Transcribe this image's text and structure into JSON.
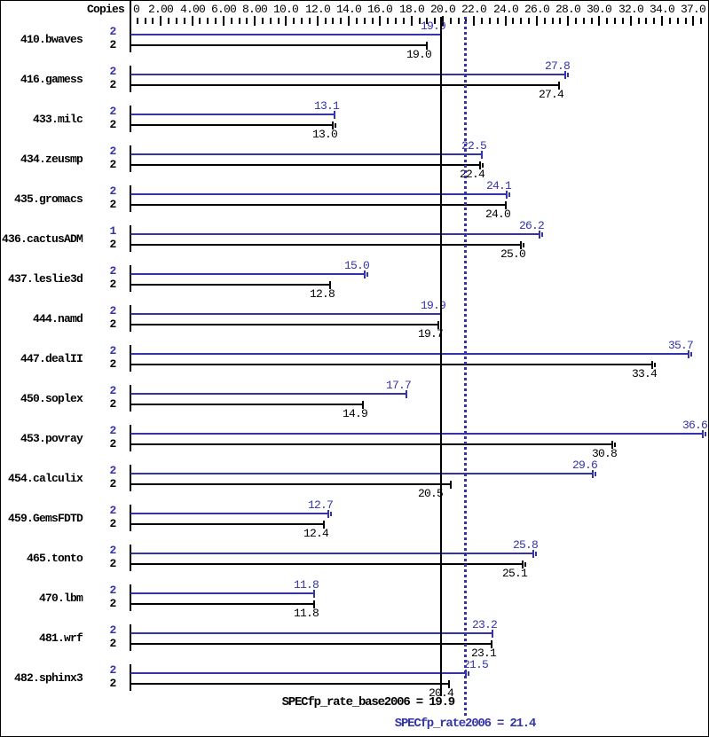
{
  "header": {
    "copies_label": "Copies"
  },
  "chart_data": {
    "type": "bar",
    "orientation": "horizontal",
    "title": "",
    "xlabel": "",
    "ylabel": "",
    "x_axis": {
      "min": 0,
      "max": 37,
      "minor_step": 0.5,
      "major_step": 2,
      "labels": [
        {
          "v": 0,
          "t": "0"
        },
        {
          "v": 2,
          "t": "2.00"
        },
        {
          "v": 4,
          "t": "4.00"
        },
        {
          "v": 6,
          "t": "6.00"
        },
        {
          "v": 8,
          "t": "8.00"
        },
        {
          "v": 10,
          "t": "10.0"
        },
        {
          "v": 12,
          "t": "12.0"
        },
        {
          "v": 14,
          "t": "14.0"
        },
        {
          "v": 16,
          "t": "16.0"
        },
        {
          "v": 18,
          "t": "18.0"
        },
        {
          "v": 20,
          "t": "20.0"
        },
        {
          "v": 22,
          "t": "22.0"
        },
        {
          "v": 24,
          "t": "24.0"
        },
        {
          "v": 26,
          "t": "26.0"
        },
        {
          "v": 28,
          "t": "28.0"
        },
        {
          "v": 30,
          "t": "30.0"
        },
        {
          "v": 32,
          "t": "32.0"
        },
        {
          "v": 34,
          "t": "34.0"
        },
        {
          "v": 37,
          "t": "37.0"
        }
      ]
    },
    "series": [
      {
        "name": "peak",
        "color": "#3333aa"
      },
      {
        "name": "base",
        "color": "#000000"
      }
    ],
    "benchmarks": [
      {
        "name": "410.bwaves",
        "peak": {
          "copies": "2",
          "value": 19.9,
          "label": "19.9",
          "err": false
        },
        "base": {
          "copies": "2",
          "value": 19.0,
          "label": "19.0",
          "err": false
        }
      },
      {
        "name": "416.gamess",
        "peak": {
          "copies": "2",
          "value": 27.8,
          "label": "27.8",
          "err": true
        },
        "base": {
          "copies": "2",
          "value": 27.4,
          "label": "27.4",
          "err": false
        }
      },
      {
        "name": "433.milc",
        "peak": {
          "copies": "2",
          "value": 13.1,
          "label": "13.1",
          "err": false
        },
        "base": {
          "copies": "2",
          "value": 13.0,
          "label": "13.0",
          "err": true
        }
      },
      {
        "name": "434.zeusmp",
        "peak": {
          "copies": "2",
          "value": 22.5,
          "label": "22.5",
          "err": false
        },
        "base": {
          "copies": "2",
          "value": 22.4,
          "label": "22.4",
          "err": true
        }
      },
      {
        "name": "435.gromacs",
        "peak": {
          "copies": "2",
          "value": 24.1,
          "label": "24.1",
          "err": true
        },
        "base": {
          "copies": "2",
          "value": 24.0,
          "label": "24.0",
          "err": false
        }
      },
      {
        "name": "436.cactusADM",
        "peak": {
          "copies": "1",
          "value": 26.2,
          "label": "26.2",
          "err": true
        },
        "base": {
          "copies": "2",
          "value": 25.0,
          "label": "25.0",
          "err": true
        }
      },
      {
        "name": "437.leslie3d",
        "peak": {
          "copies": "2",
          "value": 15.0,
          "label": "15.0",
          "err": true
        },
        "base": {
          "copies": "2",
          "value": 12.8,
          "label": "12.8",
          "err": false
        }
      },
      {
        "name": "444.namd",
        "peak": {
          "copies": "2",
          "value": 19.9,
          "label": "19.9",
          "err": false
        },
        "base": {
          "copies": "2",
          "value": 19.7,
          "label": "19.7",
          "err": false
        }
      },
      {
        "name": "447.dealII",
        "peak": {
          "copies": "2",
          "value": 35.7,
          "label": "35.7",
          "err": true
        },
        "base": {
          "copies": "2",
          "value": 33.4,
          "label": "33.4",
          "err": true
        }
      },
      {
        "name": "450.soplex",
        "peak": {
          "copies": "2",
          "value": 17.7,
          "label": "17.7",
          "err": false
        },
        "base": {
          "copies": "2",
          "value": 14.9,
          "label": "14.9",
          "err": false
        }
      },
      {
        "name": "453.povray",
        "peak": {
          "copies": "2",
          "value": 36.6,
          "label": "36.6",
          "err": true
        },
        "base": {
          "copies": "2",
          "value": 30.8,
          "label": "30.8",
          "err": true
        }
      },
      {
        "name": "454.calculix",
        "peak": {
          "copies": "2",
          "value": 29.6,
          "label": "29.6",
          "err": true
        },
        "base": {
          "copies": "2",
          "value": 20.5,
          "label": "20.5",
          "err": false,
          "label_dx": -14
        }
      },
      {
        "name": "459.GemsFDTD",
        "peak": {
          "copies": "2",
          "value": 12.7,
          "label": "12.7",
          "err": true
        },
        "base": {
          "copies": "2",
          "value": 12.4,
          "label": "12.4",
          "err": false
        }
      },
      {
        "name": "465.tonto",
        "peak": {
          "copies": "2",
          "value": 25.8,
          "label": "25.8",
          "err": true
        },
        "base": {
          "copies": "2",
          "value": 25.1,
          "label": "25.1",
          "err": true
        }
      },
      {
        "name": "470.lbm",
        "peak": {
          "copies": "2",
          "value": 11.8,
          "label": "11.8",
          "err": false
        },
        "base": {
          "copies": "2",
          "value": 11.8,
          "label": "11.8",
          "err": false
        }
      },
      {
        "name": "481.wrf",
        "peak": {
          "copies": "2",
          "value": 23.2,
          "label": "23.2",
          "err": false
        },
        "base": {
          "copies": "2",
          "value": 23.1,
          "label": "23.1",
          "err": false
        }
      },
      {
        "name": "482.sphinx3",
        "peak": {
          "copies": "2",
          "value": 21.5,
          "label": "21.5",
          "err": true,
          "label_align": "left"
        },
        "base": {
          "copies": "2",
          "value": 20.4,
          "label": "20.4",
          "err": false
        }
      }
    ],
    "summary": {
      "base_text": "SPECfp_rate_base2006 = 19.9",
      "base_value": 19.9,
      "peak_text": "SPECfp_rate2006 = 21.4",
      "peak_value": 21.4
    },
    "colors": {
      "peak": "#3333aa",
      "base": "#000000"
    },
    "legend_position": "none",
    "grid": false
  }
}
